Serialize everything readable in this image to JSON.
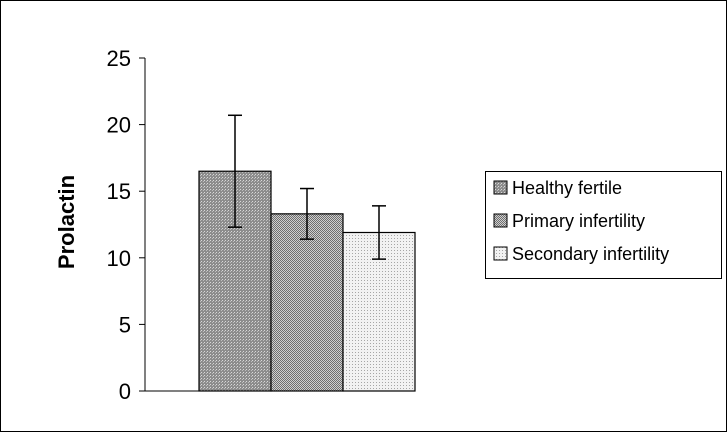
{
  "chart_data": {
    "type": "bar",
    "title": "",
    "xlabel": "",
    "ylabel": "Prolactin",
    "ylim": [
      0,
      25
    ],
    "yticks": [
      0,
      5,
      10,
      15,
      20,
      25
    ],
    "grid": false,
    "legend_position": "right",
    "series": [
      {
        "name": "Healthy fertile",
        "value": 16.5,
        "error_low": 12.3,
        "error_high": 20.7,
        "pattern": "dense-grey"
      },
      {
        "name": "Primary infertility",
        "value": 13.3,
        "error_low": 11.4,
        "error_high": 15.2,
        "pattern": "checkered-grey"
      },
      {
        "name": "Secondary infertility",
        "value": 11.9,
        "error_low": 9.9,
        "error_high": 13.9,
        "pattern": "light-dotted"
      }
    ]
  }
}
